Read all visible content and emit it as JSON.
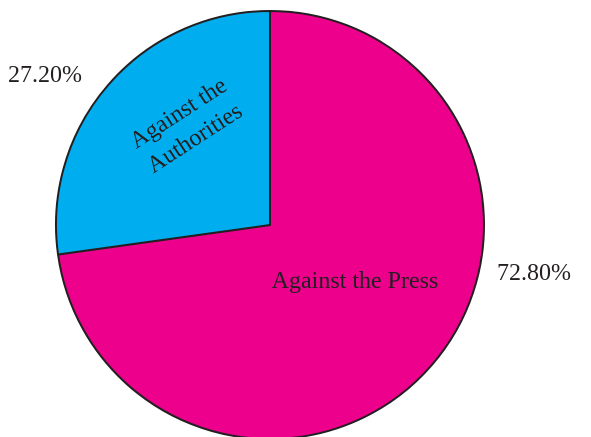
{
  "chart_data": {
    "type": "pie",
    "slices": [
      {
        "name": "Against the Press",
        "value": 72.8,
        "value_label": "72.80%",
        "label_lines": [
          "Against the Press"
        ],
        "color": "#ec008c"
      },
      {
        "name": "Against the Authorities",
        "value": 27.2,
        "value_label": "27.20%",
        "label_lines": [
          "Against the",
          "Authorities"
        ],
        "color": "#00aeef"
      }
    ],
    "outline_color": "#231f20",
    "legend": "none"
  }
}
